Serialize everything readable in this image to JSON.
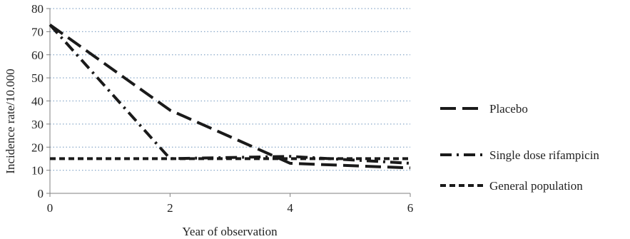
{
  "chart_data": {
    "type": "line",
    "xlabel": "Year of observation",
    "ylabel": "Incidence rate/10.000",
    "xlim": [
      0,
      6
    ],
    "ylim": [
      0,
      80
    ],
    "x_ticks": [
      0,
      2,
      4,
      6
    ],
    "y_ticks": [
      0,
      10,
      20,
      30,
      40,
      50,
      60,
      70,
      80
    ],
    "grid": "horizontal dotted",
    "legend_position": "right",
    "series": [
      {
        "name": "Placebo",
        "style": "long-dash",
        "color": "#1a1a1a",
        "points": [
          [
            0,
            73
          ],
          [
            2,
            36
          ],
          [
            4,
            13
          ],
          [
            6,
            11
          ]
        ]
      },
      {
        "name": "Single dose rifampicin",
        "style": "dash-dot",
        "color": "#1a1a1a",
        "points": [
          [
            0,
            73
          ],
          [
            2,
            15
          ],
          [
            4,
            16
          ],
          [
            6,
            13
          ]
        ]
      },
      {
        "name": "General population",
        "style": "short-dash",
        "color": "#1a1a1a",
        "points": [
          [
            0,
            15
          ],
          [
            2,
            15
          ],
          [
            4,
            15
          ],
          [
            6,
            15
          ]
        ]
      }
    ]
  }
}
